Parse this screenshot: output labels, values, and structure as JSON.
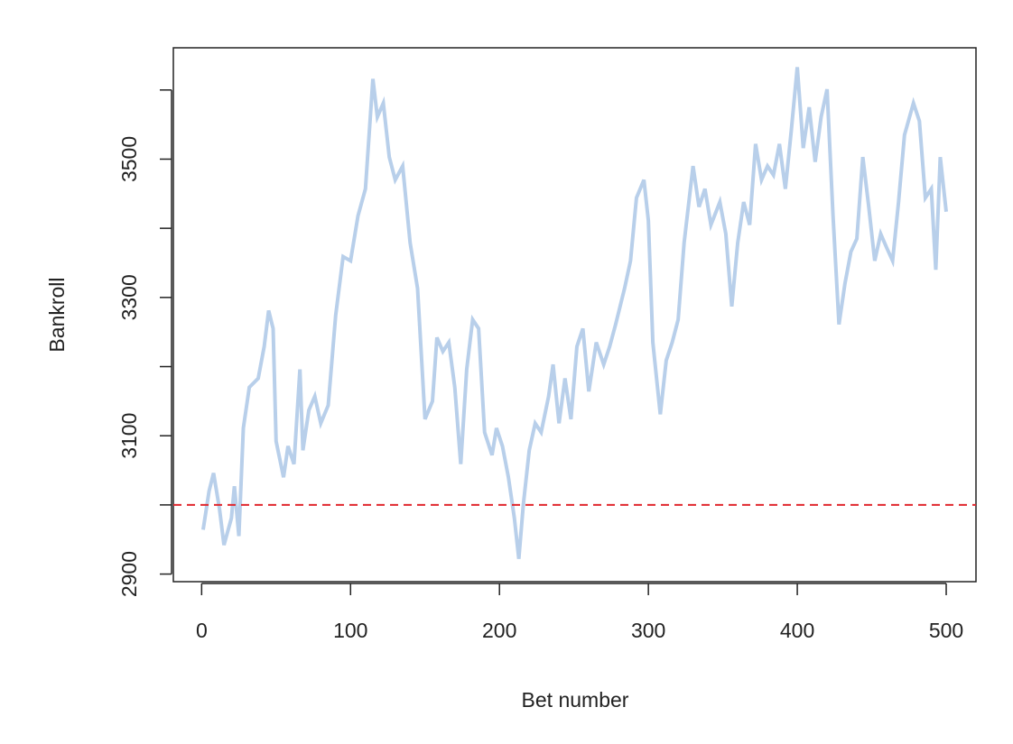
{
  "chart_data": {
    "type": "line",
    "xlabel": "Bet number",
    "ylabel": "Bankroll",
    "x": [
      1,
      5,
      8,
      12,
      15,
      20,
      22,
      25,
      28,
      32,
      38,
      42,
      45,
      48,
      50,
      55,
      58,
      62,
      66,
      68,
      72,
      76,
      80,
      85,
      90,
      95,
      100,
      105,
      110,
      115,
      118,
      122,
      126,
      130,
      135,
      140,
      145,
      150,
      155,
      158,
      162,
      166,
      170,
      174,
      178,
      182,
      186,
      190,
      195,
      198,
      202,
      206,
      210,
      213,
      216,
      220,
      224,
      228,
      233,
      236,
      240,
      244,
      248,
      252,
      256,
      260,
      265,
      270,
      274,
      278,
      284,
      288,
      292,
      297,
      300,
      303,
      308,
      312,
      316,
      320,
      324,
      330,
      334,
      338,
      342,
      348,
      352,
      356,
      360,
      364,
      368,
      372,
      376,
      380,
      384,
      388,
      392,
      396,
      400,
      404,
      408,
      412,
      416,
      420,
      424,
      428,
      432,
      436,
      440,
      444,
      448,
      452,
      456,
      460,
      464,
      468,
      472,
      478,
      482,
      486,
      490,
      493,
      496,
      500
    ],
    "series": [
      {
        "name": "Bankroll",
        "color": "#b8cfea",
        "values": [
          2964,
          3020,
          3046,
          2994,
          2942,
          2981,
          3027,
          2955,
          3111,
          3170,
          3183,
          3229,
          3281,
          3255,
          3092,
          3040,
          3085,
          3059,
          3196,
          3079,
          3137,
          3157,
          3118,
          3144,
          3274,
          3359,
          3353,
          3418,
          3457,
          3616,
          3561,
          3581,
          3503,
          3470,
          3490,
          3379,
          3313,
          3124,
          3150,
          3242,
          3222,
          3235,
          3170,
          3059,
          3196,
          3268,
          3255,
          3105,
          3072,
          3111,
          3085,
          3040,
          2981,
          2922,
          3000,
          3079,
          3118,
          3105,
          3157,
          3203,
          3118,
          3183,
          3124,
          3229,
          3255,
          3164,
          3235,
          3203,
          3229,
          3261,
          3313,
          3353,
          3444,
          3470,
          3411,
          3235,
          3131,
          3209,
          3235,
          3268,
          3379,
          3490,
          3431,
          3457,
          3405,
          3438,
          3392,
          3287,
          3379,
          3438,
          3405,
          3522,
          3470,
          3490,
          3477,
          3522,
          3457,
          3542,
          3633,
          3516,
          3575,
          3496,
          3561,
          3601,
          3418,
          3261,
          3320,
          3366,
          3385,
          3503,
          3431,
          3353,
          3392,
          3372,
          3353,
          3438,
          3535,
          3581,
          3555,
          3444,
          3457,
          3340,
          3503,
          3424
        ]
      }
    ],
    "xlim": [
      -19,
      520
    ],
    "ylim": [
      2889,
      3661
    ],
    "xticks": [
      0,
      100,
      200,
      300,
      400,
      500
    ],
    "yticks": [
      2900,
      {
        "value": 3000
      },
      3100,
      {
        "value": 3200
      },
      3300,
      {
        "value": 3400
      },
      3500,
      {
        "value": 3600
      }
    ],
    "hline": {
      "value": 3000,
      "color": "#e0282e",
      "dashed": true
    }
  }
}
